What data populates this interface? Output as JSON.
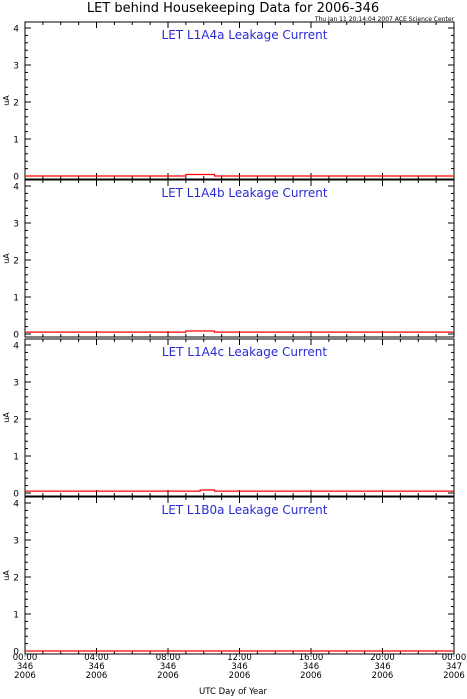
{
  "title": "LET behind Housekeeping Data for 2006-346",
  "timestamp": "Thu Jan 11 20:14:04 2007 ACE Science Center",
  "colors": {
    "series": "#ff0000",
    "panel_title": "#2b2bd6",
    "axes": "#000000"
  },
  "chart_data": [
    {
      "type": "line",
      "title": "LET L1A4a Leakage Current",
      "ylabel": "uA",
      "ylim": [
        0,
        4
      ],
      "yticks": [
        "0",
        "1",
        "2",
        "3",
        "4"
      ],
      "x": [
        0,
        9.0,
        9.0,
        10.6,
        10.6,
        24
      ],
      "y": [
        0.0,
        0.0,
        0.04,
        0.04,
        0.0,
        0.0
      ]
    },
    {
      "type": "line",
      "title": "LET L1A4b Leakage Current",
      "ylabel": "uA",
      "ylim": [
        0,
        4
      ],
      "yticks": [
        "0",
        "1",
        "2",
        "3",
        "4"
      ],
      "x": [
        0,
        9.0,
        9.0,
        10.6,
        10.6,
        24
      ],
      "y": [
        0.05,
        0.05,
        0.08,
        0.08,
        0.05,
        0.05
      ]
    },
    {
      "type": "line",
      "title": "LET L1A4c Leakage Current",
      "ylabel": "uA",
      "ylim": [
        0,
        4
      ],
      "yticks": [
        "0",
        "1",
        "2",
        "3",
        "4"
      ],
      "x": [
        0,
        9.8,
        9.8,
        10.6,
        10.6,
        24
      ],
      "y": [
        0.05,
        0.05,
        0.08,
        0.08,
        0.05,
        0.05
      ]
    },
    {
      "type": "line",
      "title": "LET L1B0a Leakage Current",
      "ylabel": "uA",
      "ylim": [
        0,
        4
      ],
      "yticks": [
        "0",
        "1",
        "2",
        "3",
        "4"
      ],
      "x": [
        0,
        24
      ],
      "y": [
        0.0,
        0.0
      ]
    }
  ],
  "x_axis": {
    "label": "UTC Day of Year",
    "range_hours": [
      0,
      24
    ],
    "ticks": [
      {
        "hour": 0,
        "time": "00:00",
        "doy": "346",
        "year": "2006"
      },
      {
        "hour": 4,
        "time": "04:00",
        "doy": "346",
        "year": "2006"
      },
      {
        "hour": 8,
        "time": "08:00",
        "doy": "346",
        "year": "2006"
      },
      {
        "hour": 12,
        "time": "12:00",
        "doy": "346",
        "year": "2006"
      },
      {
        "hour": 16,
        "time": "16:00",
        "doy": "346",
        "year": "2006"
      },
      {
        "hour": 20,
        "time": "20:00",
        "doy": "346",
        "year": "2006"
      },
      {
        "hour": 24,
        "time": "00:00",
        "doy": "347",
        "year": "2006"
      }
    ]
  }
}
